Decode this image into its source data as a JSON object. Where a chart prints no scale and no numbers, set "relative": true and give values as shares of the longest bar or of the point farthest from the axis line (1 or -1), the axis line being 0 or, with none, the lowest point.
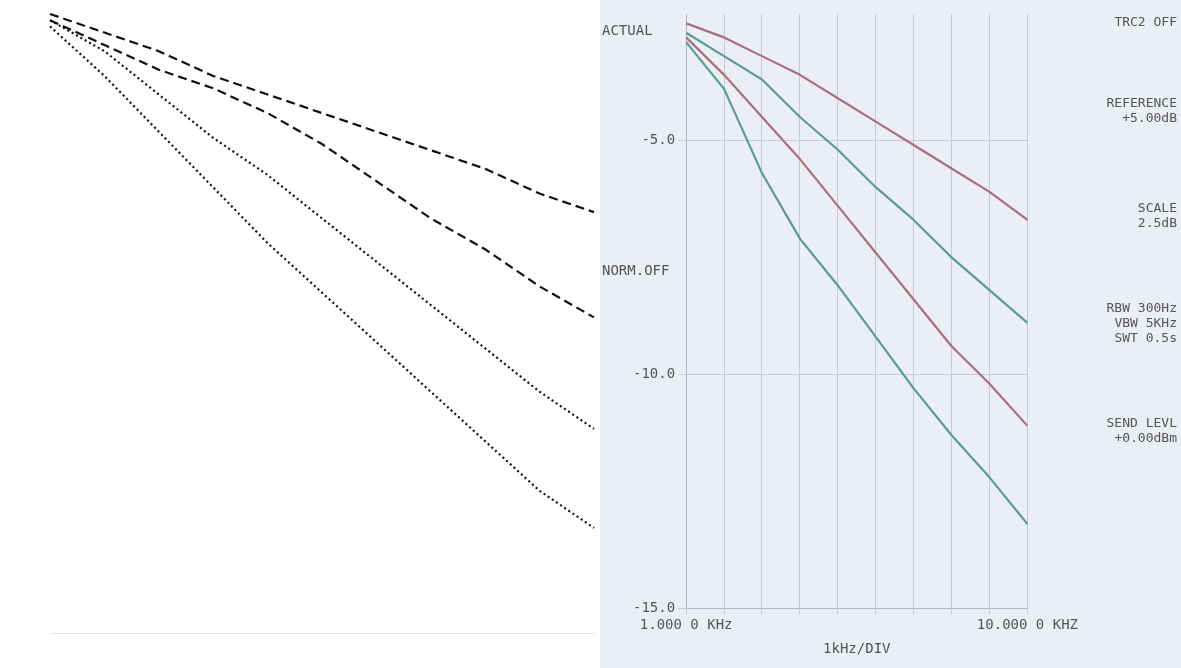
{
  "chart_data": [
    {
      "type": "line",
      "relative": true,
      "categories": [
        null,
        null,
        null,
        null,
        null,
        null,
        null,
        null,
        null,
        null,
        null
      ],
      "series": [
        {
          "color": "#111111",
          "line_style": "dashed",
          "values": [
            1.0,
            0.97,
            0.94,
            0.9,
            0.87,
            0.84,
            0.81,
            0.78,
            0.75,
            0.71,
            0.68
          ]
        },
        {
          "color": "#111111",
          "line_style": "dashed",
          "values": [
            0.99,
            0.95,
            0.91,
            0.88,
            0.84,
            0.79,
            0.73,
            0.67,
            0.62,
            0.56,
            0.51
          ]
        },
        {
          "color": "#111111",
          "line_style": "dotted",
          "values": [
            0.99,
            0.94,
            0.87,
            0.8,
            0.74,
            0.67,
            0.6,
            0.53,
            0.46,
            0.39,
            0.33
          ]
        },
        {
          "color": "#111111",
          "line_style": "dotted",
          "values": [
            0.98,
            0.9,
            0.81,
            0.72,
            0.63,
            0.55,
            0.47,
            0.39,
            0.31,
            0.23,
            0.17
          ]
        }
      ]
    },
    {
      "type": "line",
      "xlabel": "1kHz/DIV",
      "categories": [
        "1.000 0 KHz",
        null,
        null,
        null,
        null,
        null,
        null,
        null,
        null,
        "10.000 0 KHZ"
      ],
      "ylim": [
        -15,
        -2.3
      ],
      "yticks": [
        {
          "value": -5,
          "label": "-5.0"
        },
        {
          "value": -10,
          "label": "-10.0"
        },
        {
          "value": -15,
          "label": "-15.0"
        }
      ],
      "grid": true,
      "annotations": [
        "ACTUAL",
        "NORM.OFF",
        "TRC2  OFF",
        "REFERENCE\n+5.00dB",
        "SCALE\n2.5dB",
        "RBW  300Hz\nVBW  5KHz\nSWT  0.5s",
        "SEND LEVL\n+0.00dBm"
      ],
      "series": [
        {
          "color": "#a8707a",
          "values": [
            -2.5,
            -2.8,
            -3.2,
            -3.6,
            -4.1,
            -4.6,
            -5.1,
            -5.6,
            -6.1,
            -6.7
          ]
        },
        {
          "color": "#5a9a9a",
          "values": [
            -2.7,
            -3.2,
            -3.7,
            -4.5,
            -5.2,
            -6.0,
            -6.7,
            -7.5,
            -8.2,
            -8.9
          ]
        },
        {
          "color": "#a8707a",
          "values": [
            -2.8,
            -3.6,
            -4.5,
            -5.4,
            -6.4,
            -7.4,
            -8.4,
            -9.4,
            -10.2,
            -11.1
          ]
        },
        {
          "color": "#5a9a9a",
          "values": [
            -2.9,
            -3.9,
            -5.7,
            -7.1,
            -8.1,
            -9.2,
            -10.3,
            -11.3,
            -12.2,
            -13.2
          ]
        }
      ]
    }
  ]
}
